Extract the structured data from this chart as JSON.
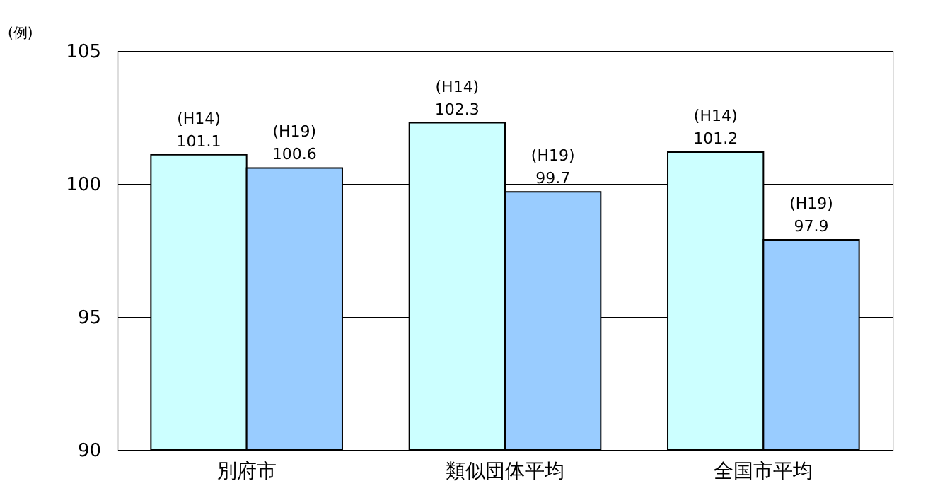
{
  "chart_data": {
    "type": "bar",
    "ylabel": "(例)",
    "categories": [
      "別府市",
      "類似団体平均",
      "全国市平均"
    ],
    "series": [
      {
        "name": "(H14)",
        "color": "#ccffff",
        "values": [
          101.1,
          102.3,
          101.2
        ]
      },
      {
        "name": "(H19)",
        "color": "#99ccff",
        "values": [
          100.6,
          99.7,
          97.9
        ]
      }
    ],
    "ylim": [
      90,
      105
    ],
    "yticks": [
      90,
      95,
      100,
      105
    ],
    "grid": "y",
    "legend": false,
    "data_labels": true
  }
}
